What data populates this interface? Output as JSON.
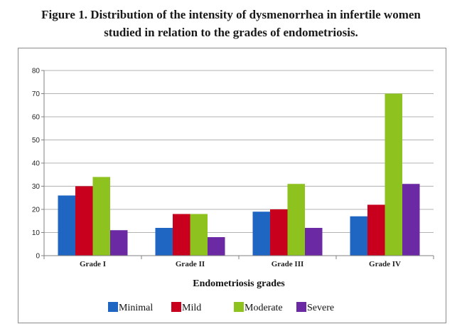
{
  "figure": {
    "title_line1": "Figure 1. Distribution of the intensity of dysmenorrhea in infertile women",
    "title_line2": "studied in relation to the grades of endometriosis."
  },
  "chart_data": {
    "type": "bar",
    "title": "Figure 1. Distribution of the intensity of dysmenorrhea in infertile women studied in relation to the grades of endometriosis.",
    "xlabel": "Endometriosis grades",
    "ylabel": "",
    "ylim": [
      0,
      80
    ],
    "yticks": [
      0,
      10,
      20,
      30,
      40,
      50,
      60,
      70,
      80
    ],
    "grid": true,
    "legend_position": "bottom",
    "categories": [
      "Grade I",
      "Grade II",
      "Grade III",
      "Grade IV"
    ],
    "series": [
      {
        "name": "Minimal",
        "color": "#1f66c2",
        "values": [
          26,
          12,
          19,
          17
        ]
      },
      {
        "name": "Mild",
        "color": "#c8001e",
        "values": [
          30,
          18,
          20,
          22
        ]
      },
      {
        "name": "Moderate",
        "color": "#8dc21f",
        "values": [
          34,
          18,
          31,
          70
        ]
      },
      {
        "name": "Severe",
        "color": "#6b2aa3",
        "values": [
          11,
          8,
          12,
          31
        ]
      }
    ]
  }
}
